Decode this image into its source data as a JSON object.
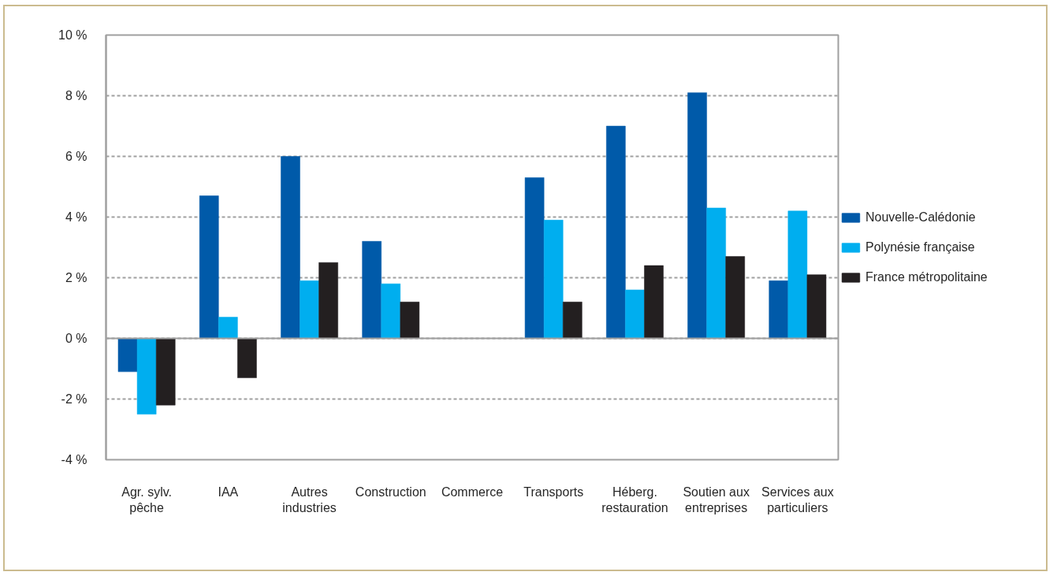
{
  "chart_data": {
    "type": "bar",
    "categories": [
      "Agr. sylv. pêche",
      "IAA",
      "Autres industries",
      "Construction",
      "Commerce",
      "Transports",
      "Héberg. restauration",
      "Soutien aux entreprises",
      "Services aux particuliers"
    ],
    "series": [
      {
        "name": "Nouvelle-Calédonie",
        "color": "#005aa9",
        "values": [
          -1.1,
          4.7,
          6.0,
          3.2,
          null,
          5.3,
          7.0,
          8.1,
          1.9
        ]
      },
      {
        "name": "Polynésie française",
        "color": "#00aeef",
        "values": [
          -2.5,
          0.7,
          1.9,
          1.8,
          null,
          3.9,
          1.6,
          4.3,
          4.2
        ]
      },
      {
        "name": "France métropolitaine",
        "color": "#231f20",
        "values": [
          -2.2,
          -1.3,
          2.5,
          1.2,
          null,
          1.2,
          2.4,
          2.7,
          2.1
        ]
      }
    ],
    "ylim": [
      -4,
      10
    ],
    "yticks": [
      {
        "value": -4,
        "label": "-4 %"
      },
      {
        "value": -2,
        "label": "-2 %"
      },
      {
        "value": 0,
        "label": "0 %"
      },
      {
        "value": 2,
        "label": "2 %"
      },
      {
        "value": 4,
        "label": "4 %"
      },
      {
        "value": 6,
        "label": "6 %"
      },
      {
        "value": 8,
        "label": "8 %"
      },
      {
        "value": 10,
        "label": "10 %"
      }
    ],
    "grid": "y",
    "legend": "right"
  }
}
